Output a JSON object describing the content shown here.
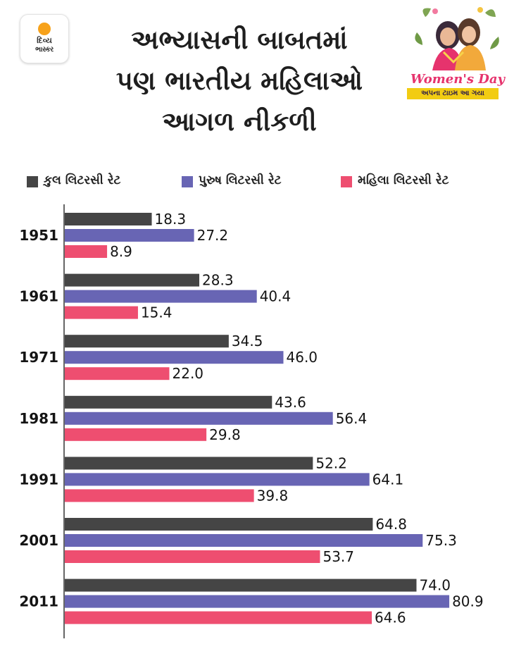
{
  "logo": {
    "line1": "દિવ્ય",
    "line2": "ભાસ્કર"
  },
  "header": {
    "title_lines": [
      "અભ્યાસની બાબતમાં",
      "પણ ભારતીય મહિલાઓ",
      "આગળ નીકળી"
    ]
  },
  "badge": {
    "title": "Women's Day",
    "subtitle": "અપના ટાઇમ આ ગયા"
  },
  "colors": {
    "total": "#454545",
    "male": "#6865b4",
    "female": "#ee4e70",
    "axis": "#333333"
  },
  "chart_data": {
    "type": "bar",
    "orientation": "horizontal",
    "title": "અભ્યાસની બાબતમાં પણ ભારતીય મહિલાઓ આગળ નીકળી",
    "categories": [
      "1951",
      "1961",
      "1971",
      "1981",
      "1991",
      "2001",
      "2011"
    ],
    "series": [
      {
        "name": "કુલ લિટરસી રેટ",
        "key": "total",
        "values_text": [
          "18.3",
          "28.3",
          "34.5",
          "43.6",
          "52.2",
          "64.8",
          "74.0"
        ],
        "values": [
          18.3,
          28.3,
          34.5,
          43.6,
          52.2,
          64.8,
          74.0
        ]
      },
      {
        "name": "પુરુષ લિટરસી રેટ",
        "key": "male",
        "values_text": [
          "27.2",
          "40.4",
          "46.0",
          "56.4",
          "64.1",
          "75.3",
          "80.9"
        ],
        "values": [
          27.2,
          40.4,
          46.0,
          56.4,
          64.1,
          75.3,
          80.9
        ]
      },
      {
        "name": "મહિલા લિટરસી રેટ",
        "key": "female",
        "values_text": [
          "8.9",
          "15.4",
          "22.0",
          "29.8",
          "39.8",
          "53.7",
          "64.6"
        ],
        "values": [
          8.9,
          15.4,
          22.0,
          29.8,
          39.8,
          53.7,
          64.6
        ]
      }
    ],
    "xlim": [
      0,
      100
    ],
    "legend_position": "top",
    "grid": false
  }
}
